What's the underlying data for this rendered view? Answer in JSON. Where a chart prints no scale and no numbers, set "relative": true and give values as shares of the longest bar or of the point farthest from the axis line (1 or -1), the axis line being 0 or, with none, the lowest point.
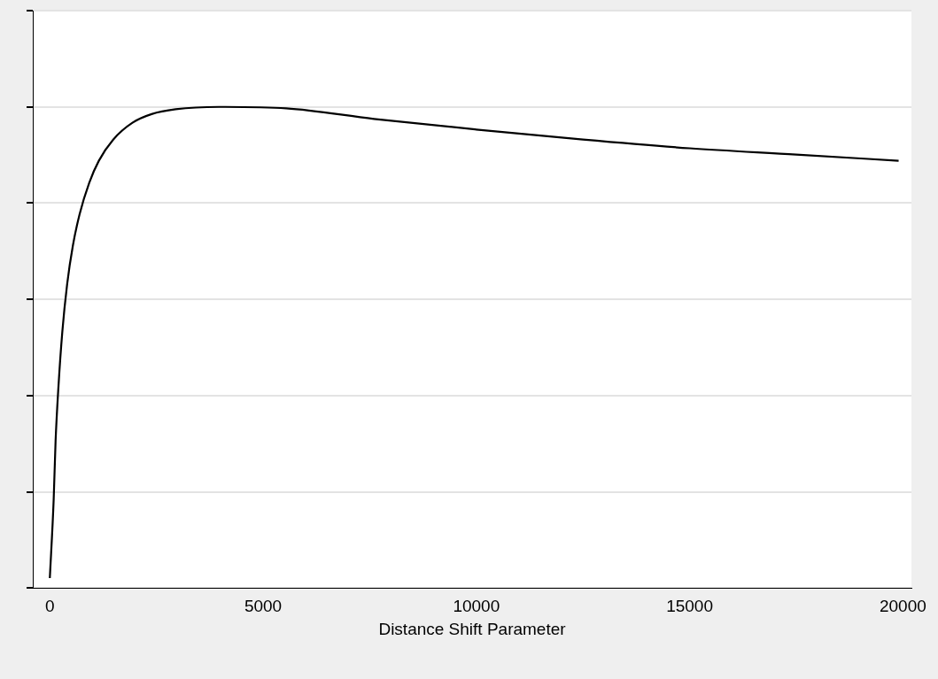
{
  "chart_data": {
    "type": "line",
    "xlabel": "Distance Shift Parameter",
    "relative": true,
    "x": [
      0,
      90,
      135,
      203,
      293,
      405,
      541,
      698,
      923,
      1149,
      1486,
      1937,
      2387,
      2950,
      3964,
      5541,
      7600,
      10000,
      12500,
      15000,
      17500,
      19900
    ],
    "series": [
      {
        "color": "#000000",
        "values": [
          0.021,
          0.184,
          0.306,
          0.42,
          0.533,
          0.631,
          0.712,
          0.777,
          0.842,
          0.888,
          0.932,
          0.967,
          0.985,
          0.995,
          1.0,
          0.997,
          0.975,
          0.953,
          0.932,
          0.914,
          0.901,
          0.888
        ]
      }
    ],
    "xlim": [
      -400,
      20200
    ],
    "xticks": [
      0,
      5000,
      10000,
      15000,
      20000
    ],
    "grid": "y",
    "legend": false,
    "marker": "none",
    "line_style": "solid",
    "tick_labels": "x"
  }
}
